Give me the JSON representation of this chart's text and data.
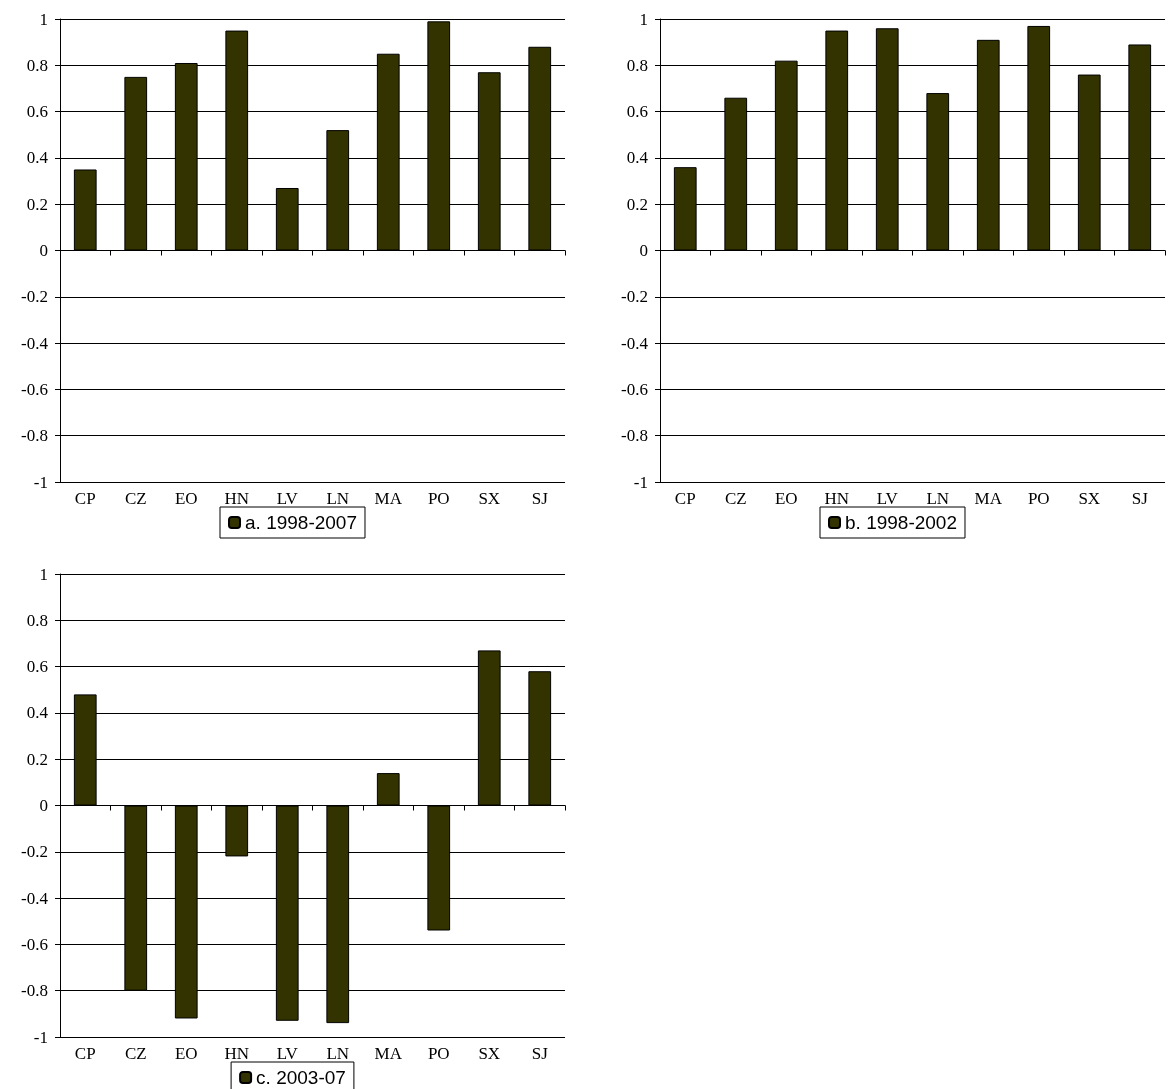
{
  "chart_data": [
    {
      "type": "bar",
      "categories": [
        "CP",
        "CZ",
        "EO",
        "HN",
        "LV",
        "LN",
        "MA",
        "PO",
        "SX",
        "SJ"
      ],
      "series": [
        {
          "name": "a. 1998-2007",
          "color": "#333300",
          "values": [
            0.35,
            0.75,
            0.81,
            0.95,
            0.27,
            0.52,
            0.85,
            0.99,
            0.77,
            0.88
          ]
        }
      ],
      "ylim": [
        -1,
        1
      ],
      "yticks": [
        -1,
        -0.8,
        -0.6,
        -0.4,
        -0.2,
        0,
        0.2,
        0.4,
        0.6,
        0.8,
        1
      ],
      "grid": "y",
      "legend": "bottom"
    },
    {
      "type": "bar",
      "categories": [
        "CP",
        "CZ",
        "EO",
        "HN",
        "LV",
        "LN",
        "MA",
        "PO",
        "SX",
        "SJ"
      ],
      "series": [
        {
          "name": "b. 1998-2002",
          "color": "#333300",
          "values": [
            0.36,
            0.66,
            0.82,
            0.95,
            0.96,
            0.68,
            0.91,
            0.97,
            0.76,
            0.89
          ]
        }
      ],
      "ylim": [
        -1,
        1
      ],
      "yticks": [
        -1,
        -0.8,
        -0.6,
        -0.4,
        -0.2,
        0,
        0.2,
        0.4,
        0.6,
        0.8,
        1
      ],
      "grid": "y",
      "legend": "bottom"
    },
    {
      "type": "bar",
      "categories": [
        "CP",
        "CZ",
        "EO",
        "HN",
        "LV",
        "LN",
        "MA",
        "PO",
        "SX",
        "SJ"
      ],
      "series": [
        {
          "name": "c. 2003-07",
          "color": "#333300",
          "values": [
            0.48,
            -0.8,
            -0.92,
            -0.22,
            -0.93,
            -0.94,
            0.14,
            -0.54,
            0.67,
            0.58
          ]
        }
      ],
      "ylim": [
        -1,
        1
      ],
      "yticks": [
        -1,
        -0.8,
        -0.6,
        -0.4,
        -0.2,
        0,
        0.2,
        0.4,
        0.6,
        0.8,
        1
      ],
      "grid": "y",
      "legend": "bottom"
    }
  ]
}
